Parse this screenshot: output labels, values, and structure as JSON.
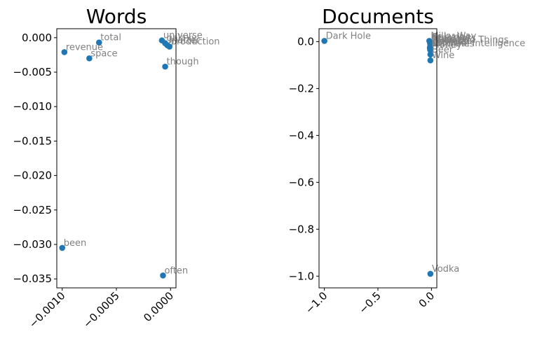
{
  "chart_data": [
    {
      "type": "scatter",
      "title": "Words",
      "xlabel": "",
      "ylabel": "",
      "xlim": [
        -0.00105,
        5e-05
      ],
      "ylim": [
        -0.0363,
        0.0013
      ],
      "xticks": [
        -0.001,
        -0.0005,
        0.0
      ],
      "xtick_labels": [
        "−0.0010",
        "−0.0005",
        "0.0000"
      ],
      "xtick_rotation": 45,
      "yticks": [
        0.0,
        -0.005,
        -0.01,
        -0.015,
        -0.02,
        -0.025,
        -0.03,
        -0.035
      ],
      "ytick_labels": [
        "0.000",
        "−0.005",
        "−0.010",
        "−0.015",
        "−0.020",
        "−0.025",
        "−0.030",
        "−0.035"
      ],
      "grid": false,
      "color": "#1f77b4",
      "points": [
        {
          "label": "total",
          "x": -0.00066,
          "y": -0.0007
        },
        {
          "label": "revenue",
          "x": -0.00098,
          "y": -0.0021
        },
        {
          "label": "space",
          "x": -0.00075,
          "y": -0.003
        },
        {
          "label": "universe",
          "x": -8e-05,
          "y": -0.0004
        },
        {
          "label": "galaxy",
          "x": -5e-05,
          "y": -0.0008
        },
        {
          "label": "matter",
          "x": -3e-05,
          "y": -0.0011
        },
        {
          "label": "production",
          "x": -1e-05,
          "y": -0.0013
        },
        {
          "label": "though",
          "x": -5e-05,
          "y": -0.0042
        },
        {
          "label": "been",
          "x": -0.001,
          "y": -0.0305
        },
        {
          "label": "often",
          "x": -7e-05,
          "y": -0.0345
        }
      ]
    },
    {
      "type": "scatter",
      "title": "Documents",
      "xlabel": "",
      "ylabel": "",
      "xlim": [
        -1.05,
        0.05
      ],
      "ylim": [
        -1.05,
        0.055
      ],
      "xticks": [
        -1.0,
        -0.5,
        0.0
      ],
      "xtick_labels": [
        "−1.0",
        "−0.5",
        "0.0"
      ],
      "xtick_rotation": 45,
      "yticks": [
        0.0,
        -0.2,
        -0.4,
        -0.6,
        -0.8,
        -1.0
      ],
      "ytick_labels": [
        "0.0",
        "−0.2",
        "−0.4",
        "−0.6",
        "−0.8",
        "−1.0"
      ],
      "grid": false,
      "color": "#1f77b4",
      "label_box_note": "",
      "points": [
        {
          "label": "Dark Hole",
          "x": -1.0,
          "y": 0.003
        },
        {
          "label": "Milky Way",
          "x": -0.02,
          "y": 0.003
        },
        {
          "label": "Galaxies",
          "x": -0.015,
          "y": -0.002
        },
        {
          "label": "Star Wars",
          "x": -0.01,
          "y": -0.006
        },
        {
          "label": "Planets",
          "x": -0.012,
          "y": -0.01
        },
        {
          "label": "Stars and Things",
          "x": -0.008,
          "y": -0.014
        },
        {
          "label": "Universe",
          "x": -0.01,
          "y": -0.018
        },
        {
          "label": "Cosmos",
          "x": -0.012,
          "y": -0.022
        },
        {
          "label": "Earth",
          "x": -0.015,
          "y": -0.026
        },
        {
          "label": "Artificial Intelligence",
          "x": -0.01,
          "y": -0.028
        },
        {
          "label": "Machines",
          "x": -0.014,
          "y": -0.03
        },
        {
          "label": "Money",
          "x": -0.012,
          "y": -0.035
        },
        {
          "label": "Beer",
          "x": -0.01,
          "y": -0.055
        },
        {
          "label": "Wine",
          "x": -0.01,
          "y": -0.08
        },
        {
          "label": "Vodka",
          "x": -0.01,
          "y": -0.99
        }
      ]
    }
  ]
}
